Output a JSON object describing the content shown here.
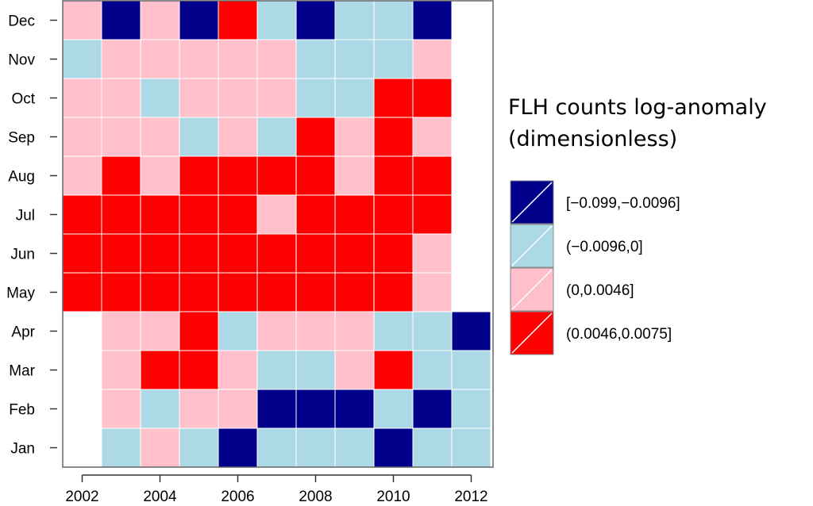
{
  "chart_data": {
    "type": "heatmap",
    "title": "",
    "xlabel": "",
    "ylabel": "",
    "x": [
      2002,
      2003,
      2004,
      2005,
      2006,
      2007,
      2008,
      2009,
      2010,
      2011,
      2012
    ],
    "x_tick_labels": [
      "2002",
      "2004",
      "2006",
      "2008",
      "2010",
      "2012"
    ],
    "months": [
      "Jan",
      "Feb",
      "Mar",
      "Apr",
      "May",
      "Jun",
      "Jul",
      "Aug",
      "Sep",
      "Oct",
      "Nov",
      "Dec"
    ],
    "grid": false,
    "legend_position": "right",
    "legend_title": [
      "FLH counts log-anomaly",
      "(dimensionless)"
    ],
    "classes": [
      {
        "label": "[−0.099,−0.0096]",
        "color": "#00008b"
      },
      {
        "label": "(−0.0096,0]",
        "color": "#add8e6"
      },
      {
        "label": "(0,0.0046]",
        "color": "#ffc0cb"
      },
      {
        "label": "(0.0046,0.0075]",
        "color": "#ff0000"
      }
    ],
    "values_by_month": {
      "Jan": [
        null,
        1,
        2,
        1,
        0,
        1,
        1,
        1,
        0,
        1,
        1
      ],
      "Feb": [
        null,
        2,
        1,
        2,
        2,
        0,
        0,
        0,
        1,
        0,
        1
      ],
      "Mar": [
        null,
        2,
        3,
        3,
        2,
        1,
        1,
        2,
        3,
        1,
        1
      ],
      "Apr": [
        null,
        2,
        2,
        3,
        1,
        2,
        2,
        2,
        1,
        1,
        0
      ],
      "May": [
        3,
        3,
        3,
        3,
        3,
        3,
        3,
        3,
        3,
        2,
        null
      ],
      "Jun": [
        3,
        3,
        3,
        3,
        3,
        3,
        3,
        3,
        3,
        2,
        null
      ],
      "Jul": [
        3,
        3,
        3,
        3,
        3,
        2,
        3,
        3,
        3,
        3,
        null
      ],
      "Aug": [
        2,
        3,
        2,
        3,
        3,
        3,
        3,
        2,
        3,
        3,
        null
      ],
      "Sep": [
        2,
        2,
        2,
        1,
        2,
        1,
        3,
        2,
        3,
        2,
        null
      ],
      "Oct": [
        2,
        2,
        1,
        2,
        2,
        2,
        1,
        1,
        3,
        3,
        null
      ],
      "Nov": [
        1,
        2,
        2,
        2,
        2,
        2,
        1,
        1,
        1,
        2,
        null
      ],
      "Dec": [
        2,
        0,
        2,
        0,
        3,
        1,
        0,
        1,
        1,
        0,
        null
      ]
    }
  }
}
